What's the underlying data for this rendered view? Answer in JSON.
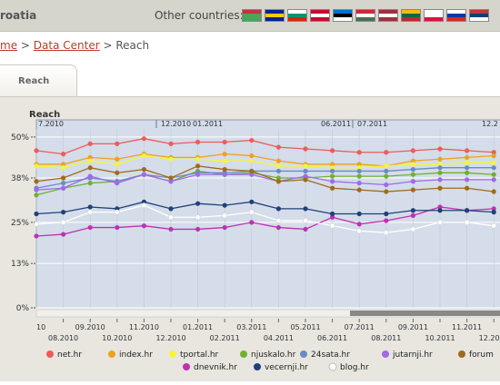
{
  "header": {
    "country": "roatia",
    "other_countries_label": "Other countries:",
    "flags": [
      {
        "name": "belarus-flag",
        "colors": [
          "#c8313e",
          "#4aa657",
          "#4aa657"
        ]
      },
      {
        "name": "bosnia-flag",
        "colors": [
          "#002395",
          "#fecb00",
          "#002395"
        ]
      },
      {
        "name": "bulgaria-flag",
        "colors": [
          "#ffffff",
          "#00966e",
          "#d62612"
        ]
      },
      {
        "name": "denmark-flag",
        "colors": [
          "#c60c30",
          "#ffffff",
          "#c60c30"
        ]
      },
      {
        "name": "estonia-flag",
        "colors": [
          "#0072ce",
          "#000000",
          "#ffffff"
        ]
      },
      {
        "name": "hungary-flag",
        "colors": [
          "#ce2939",
          "#ffffff",
          "#477050"
        ]
      },
      {
        "name": "latvia-flag",
        "colors": [
          "#9e3039",
          "#ffffff",
          "#9e3039"
        ]
      },
      {
        "name": "lithuania-flag",
        "colors": [
          "#fdb913",
          "#006a44",
          "#c1272d"
        ]
      },
      {
        "name": "poland-flag",
        "colors": [
          "#ffffff",
          "#ffffff",
          "#dc143c"
        ]
      },
      {
        "name": "russia-flag",
        "colors": [
          "#ffffff",
          "#0039a6",
          "#d52b1e"
        ]
      },
      {
        "name": "serbia-flag",
        "colors": [
          "#c6363c",
          "#0c4076",
          "#ffffff"
        ]
      }
    ]
  },
  "breadcrumb": {
    "home": "me",
    "sep1": ">",
    "data_center": "Data Center",
    "sep2": ">",
    "current": "Reach"
  },
  "tabs": {
    "reach": "Reach"
  },
  "chart_data": {
    "type": "line",
    "title": "Reach",
    "x": [
      "07.2010",
      "08.2010",
      "09.2010",
      "10.2010",
      "11.2010",
      "12.2010",
      "01.2011",
      "02.2011",
      "03.2011",
      "04.2011",
      "05.2011",
      "06.2011",
      "07.2011",
      "08.2011",
      "09.2011",
      "10.2011",
      "11.2011",
      "12.2011"
    ],
    "x_tick_labels_top": [
      "09.2010",
      "11.2010",
      "01.2011",
      "03.2011",
      "05.2011",
      "07.2011",
      "09.2011",
      "11.2011"
    ],
    "x_tick_labels_bottom": [
      "08.2010",
      "10.2010",
      "12.2010",
      "02.2011",
      "04.2011",
      "06.2011",
      "08.2011",
      "10.2011",
      "12.2011"
    ],
    "x_tick_label_top_partial": "10",
    "overview_labels": [
      "7.2010",
      "12.2010",
      "01.2011",
      "06.2011",
      "07.2011",
      "12.2"
    ],
    "y_ticks": [
      "0%",
      "13%",
      "25%",
      "38%",
      "50%"
    ],
    "ylim": [
      0,
      55
    ],
    "grid": true,
    "legend_position": "bottom",
    "series": [
      {
        "name": "net.hr",
        "color": "#f05a5a",
        "values": [
          46,
          45,
          48,
          48,
          49.5,
          48,
          48.5,
          48.5,
          49,
          47,
          46.5,
          46,
          45.5,
          45.5,
          46,
          46.5,
          46,
          45.5
        ]
      },
      {
        "name": "index.hr",
        "color": "#f0a020",
        "values": [
          42,
          42,
          44,
          43.5,
          45,
          44,
          44,
          45,
          44.5,
          43,
          42,
          42,
          42,
          41.5,
          43,
          43.5,
          44,
          44.5
        ]
      },
      {
        "name": "tportal.hr",
        "color": "#f5f53a",
        "values": [
          41.5,
          41,
          43,
          42,
          44.5,
          43.5,
          43.5,
          43,
          43,
          41.5,
          41.5,
          41,
          41,
          41.5,
          42,
          42,
          42.5,
          42.5
        ]
      },
      {
        "name": "njuskalo.hr",
        "color": "#70b030",
        "values": [
          33,
          35,
          36.5,
          37,
          39,
          37,
          40,
          39,
          39.5,
          38,
          38,
          38.5,
          38.5,
          38.5,
          39,
          39.5,
          39.5,
          39
        ]
      },
      {
        "name": "24sata.hr",
        "color": "#6a8ac8",
        "values": [
          35,
          36.5,
          38,
          37,
          39,
          38,
          39.5,
          39.5,
          40,
          40,
          40,
          40,
          40,
          40,
          40.5,
          41,
          41,
          41
        ]
      },
      {
        "name": "jutarnji.hr",
        "color": "#a06ae8",
        "values": [
          34.5,
          35,
          38.5,
          36.5,
          39,
          37,
          39,
          39,
          39,
          37,
          38.5,
          37,
          36.5,
          36,
          37,
          37.5,
          37.5,
          37.5
        ]
      },
      {
        "name": "forum",
        "color": "#a06a1e",
        "values": [
          37,
          38,
          41,
          39.5,
          40.5,
          38,
          41.5,
          40.5,
          40,
          37,
          37.5,
          35,
          34.5,
          34,
          34.5,
          35,
          35,
          34
        ]
      },
      {
        "name": "dnevnik.hr",
        "color": "#c030b0",
        "values": [
          21,
          21.5,
          23.5,
          23.5,
          24,
          23,
          23,
          23.5,
          25,
          23.5,
          23,
          26.5,
          24.5,
          25.5,
          27,
          29.5,
          28.5,
          29
        ]
      },
      {
        "name": "vecernji.hr",
        "color": "#20407a",
        "values": [
          27.5,
          28,
          29.5,
          29,
          31,
          29,
          30.5,
          30,
          31,
          29,
          29,
          27.5,
          27.5,
          27.5,
          28.5,
          28.5,
          28.5,
          28
        ]
      },
      {
        "name": "blog.hr",
        "color": "#ffffff",
        "values": [
          24.5,
          25,
          28,
          28,
          30,
          26.5,
          26.5,
          27,
          28,
          25.5,
          25.5,
          24,
          22.5,
          22,
          23,
          25,
          25,
          24
        ]
      }
    ]
  }
}
